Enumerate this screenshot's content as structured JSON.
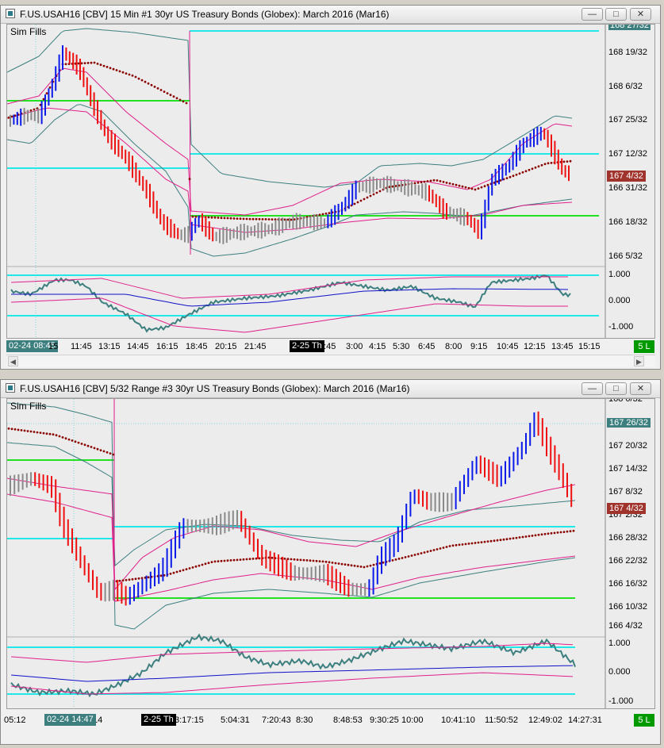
{
  "colors": {
    "up_bar": "#0a1ae8",
    "down_bar": "#ee1010",
    "neutral_bar": "#8a8a8a",
    "cyan_line": "#20e8e8",
    "green_line": "#22e022",
    "envelope": "#e0208a",
    "band_teal": "#3d7f7f",
    "vwap": "#8b0000",
    "osc": "#3d7f7f",
    "osc_mid": "#1010c8",
    "price_tag": "#a0342c"
  },
  "icons": {
    "minimize": "minimize-icon",
    "maximize": "maximize-icon",
    "close": "close-icon",
    "scroll_left": "left-arrow-icon",
    "scroll_right": "right-arrow-icon"
  },
  "top": {
    "title": "F.US.USAH16 [CBV]  15 Min   #1  30yr US Treasury Bonds (Globex): March 2016 (Mar16)",
    "sim_fills": "Sim Fills",
    "price_labels": [
      "168 19/32",
      "168 6/32",
      "167 25/32",
      "167 12/32",
      "166 31/32",
      "166 18/32",
      "166 5/32"
    ],
    "price_clipped": "168 27/32",
    "last_price": "167 4/32",
    "osc_labels": [
      "1.000",
      "0.000",
      "-1.000"
    ],
    "time_flag": "02-24 08:45",
    "time_labels": [
      "15",
      "11:45",
      "13:15",
      "14:45",
      "16:15",
      "18:45",
      "20:15",
      "21:45",
      "1:45",
      "3:00",
      "4:15",
      "5:30",
      "6:45",
      "8:00",
      "9:15",
      "10:45",
      "12:15",
      "13:45",
      "15:15"
    ],
    "date_flag": "2-25 Th",
    "bars_button": "5 L"
  },
  "bottom": {
    "title": "F.US.USAH16 [CBV]  5/32 Range  #3  30yr US Treasury Bonds (Globex): March 2016 (Mar16)",
    "sim_fills": "Sim Fills",
    "price_labels": [
      "167 26/32",
      "167 20/32",
      "167 14/32",
      "167 8/32",
      "167 2/32",
      "166 28/32",
      "166 22/32",
      "166 16/32",
      "166 10/32"
    ],
    "price_clipped_top": "168 0/32",
    "price_clipped_bottom": "166 4/32",
    "highlight_price": "167 26/32",
    "last_price": "167 4/32",
    "osc_labels": [
      "1.000",
      "0.000",
      "-1.000"
    ],
    "time_flag": "02-24 14:47",
    "time_labels": [
      "05:12",
      "14",
      "3:17:15",
      "5:04:31",
      "7:20:43",
      "8:30",
      "8:48:53",
      "9:30:25",
      "10:00",
      "10:41:10",
      "11:50:52",
      "12:49:02",
      "14:27:31"
    ],
    "date_flag": "2-25 Th",
    "bars_button": "5 L"
  }
}
